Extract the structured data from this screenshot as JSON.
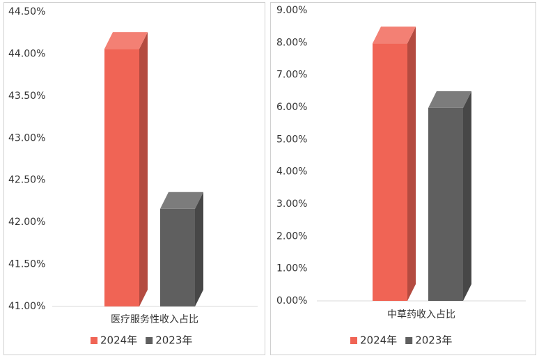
{
  "chart_data": [
    {
      "type": "bar3d",
      "categories": [
        "医疗服务性收入占比"
      ],
      "series": [
        {
          "name": "2024年",
          "color": "#f06455",
          "values": [
            44.06
          ]
        },
        {
          "name": "2023年",
          "color": "#5f5f5f",
          "values": [
            42.16
          ]
        }
      ],
      "ylim": [
        41,
        44.5
      ],
      "yticks": [
        {
          "value": 41,
          "label": "41.00%"
        },
        {
          "value": 41.5,
          "label": "41.50%"
        },
        {
          "value": 42,
          "label": "42.00%"
        },
        {
          "value": 42.5,
          "label": "42.50%"
        },
        {
          "value": 43,
          "label": "43.00%"
        },
        {
          "value": 43.5,
          "label": "43.50%"
        },
        {
          "value": 44,
          "label": "44.00%"
        },
        {
          "value": 44.5,
          "label": "44.50%"
        }
      ],
      "grid": false
    },
    {
      "type": "bar3d",
      "categories": [
        "中草药收入占比"
      ],
      "series": [
        {
          "name": "2024年",
          "color": "#f06455",
          "values": [
            7.98
          ]
        },
        {
          "name": "2023年",
          "color": "#5f5f5f",
          "values": [
            5.98
          ]
        }
      ],
      "ylim": [
        0,
        9
      ],
      "yticks": [
        {
          "value": 0,
          "label": "0.00%"
        },
        {
          "value": 1,
          "label": "1.00%"
        },
        {
          "value": 2,
          "label": "2.00%"
        },
        {
          "value": 3,
          "label": "3.00%"
        },
        {
          "value": 4,
          "label": "4.00%"
        },
        {
          "value": 5,
          "label": "5.00%"
        },
        {
          "value": 6,
          "label": "6.00%"
        },
        {
          "value": 7,
          "label": "7.00%"
        },
        {
          "value": 8,
          "label": "8.00%"
        },
        {
          "value": 9,
          "label": "9.00%"
        }
      ],
      "grid": false
    }
  ]
}
